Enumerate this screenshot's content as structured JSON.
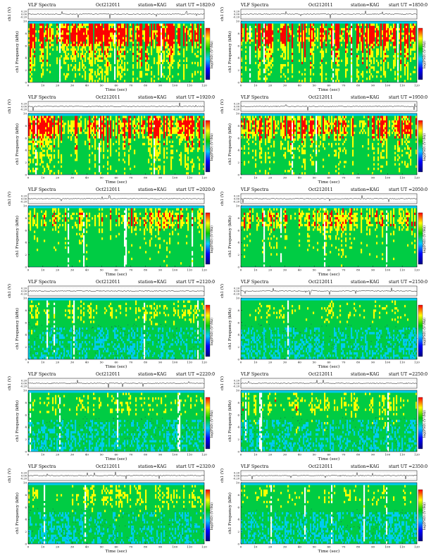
{
  "chart_data": [
    {
      "type": "heatmap",
      "title": "VLF Spectra",
      "date": "Oct212011",
      "station": "station=KAG",
      "start": "start  UT  =1820:0",
      "xlabel": "Time  (sec)",
      "xlim": [
        0,
        120
      ],
      "xticks": [
        0,
        10,
        20,
        30,
        40,
        50,
        60,
        70,
        80,
        90,
        100,
        110,
        120
      ],
      "ylabel_top": "ch1 (V)",
      "yticks_top": [
        "0.20",
        "0.00",
        "-0.20"
      ],
      "ylabel_main": "ch1 Frequency  (kHz)",
      "ylim": [
        0,
        10
      ],
      "yticks_main": [
        0,
        2,
        4,
        6,
        8,
        10
      ],
      "colorbar_label": "log(PSD) (V²/Hz)",
      "intensity": 0.82
    },
    {
      "type": "heatmap",
      "title": "VLF Spectra",
      "date": "Oct212011",
      "station": "station=KAG",
      "start": "start  UT  =1850:0",
      "xlabel": "Time  (sec)",
      "xlim": [
        0,
        120
      ],
      "xticks": [
        0,
        10,
        20,
        30,
        40,
        50,
        60,
        70,
        80,
        90,
        100,
        110,
        120
      ],
      "ylabel_top": "ch1 (V)",
      "yticks_top": [
        "0.20",
        "0.00",
        "-0.20"
      ],
      "ylabel_main": "ch1 Frequency  (kHz)",
      "ylim": [
        0,
        10
      ],
      "yticks_main": [
        0,
        2,
        4,
        6,
        8,
        10
      ],
      "colorbar_label": "log(PSD) (V²/Hz)",
      "intensity": 0.8
    },
    {
      "type": "heatmap",
      "title": "VLF Spectra",
      "date": "Oct212011",
      "station": "station=KAG",
      "start": "start  UT  =1920:0",
      "xlabel": "Time  (sec)",
      "xlim": [
        0,
        120
      ],
      "xticks": [
        0,
        10,
        20,
        30,
        40,
        50,
        60,
        70,
        80,
        90,
        100,
        110,
        120
      ],
      "ylabel_top": "ch1 (V)",
      "yticks_top": [
        "0.20",
        "0.00",
        "-0.20"
      ],
      "ylabel_main": "ch1 Frequency  (kHz)",
      "ylim": [
        0,
        10
      ],
      "yticks_main": [
        0,
        2,
        4,
        6,
        8,
        10
      ],
      "colorbar_label": "log(PSD) (V²/Hz)",
      "intensity": 0.72
    },
    {
      "type": "heatmap",
      "title": "VLF Spectra",
      "date": "Oct212011",
      "station": "station=KAG",
      "start": "start  UT  =1950:0",
      "xlabel": "Time  (sec)",
      "xlim": [
        0,
        120
      ],
      "xticks": [
        0,
        10,
        20,
        30,
        40,
        50,
        60,
        70,
        80,
        90,
        100,
        110,
        120
      ],
      "ylabel_top": "ch1 (V)",
      "yticks_top": [
        "0.20",
        "0.00",
        "-0.20"
      ],
      "ylabel_main": "ch1 Frequency  (kHz)",
      "ylim": [
        0,
        10
      ],
      "yticks_main": [
        0,
        2,
        4,
        6,
        8,
        10
      ],
      "colorbar_label": "log(PSD) (V²/Hz)",
      "intensity": 0.7
    },
    {
      "type": "heatmap",
      "title": "VLF Spectra",
      "date": "Oct212011",
      "station": "station=KAG",
      "start": "start  UT  =2020:0",
      "xlabel": "Time  (sec)",
      "xlim": [
        0,
        120
      ],
      "xticks": [
        0,
        10,
        20,
        30,
        40,
        50,
        60,
        70,
        80,
        90,
        100,
        110,
        120
      ],
      "ylabel_top": "ch1 (V)",
      "yticks_top": [
        "0.20",
        "0.00",
        "-0.20"
      ],
      "ylabel_main": "ch1 Frequency  (kHz)",
      "ylim": [
        0,
        10
      ],
      "yticks_main": [
        0,
        2,
        4,
        6,
        8,
        10
      ],
      "colorbar_label": "log(PSD) (V²/Hz)",
      "intensity": 0.5
    },
    {
      "type": "heatmap",
      "title": "VLF Spectra",
      "date": "Oct212011",
      "station": "station=KAG",
      "start": "start  UT  =2050:0",
      "xlabel": "Time  (sec)",
      "xlim": [
        0,
        120
      ],
      "xticks": [
        0,
        10,
        20,
        30,
        40,
        50,
        60,
        70,
        80,
        90,
        100,
        110,
        120
      ],
      "ylabel_top": "ch1 (V)",
      "yticks_top": [
        "0.20",
        "0.00",
        "-0.20"
      ],
      "ylabel_main": "ch1 Frequency  (kHz)",
      "ylim": [
        0,
        10
      ],
      "yticks_main": [
        0,
        2,
        4,
        6,
        8,
        10
      ],
      "colorbar_label": "log(PSD) (V²/Hz)",
      "intensity": 0.5
    },
    {
      "type": "heatmap",
      "title": "VLF Spectra",
      "date": "Oct212011",
      "station": "station=KAG",
      "start": "start  UT  =2120:0",
      "xlabel": "Time  (sec)",
      "xlim": [
        0,
        120
      ],
      "xticks": [
        0,
        10,
        20,
        30,
        40,
        50,
        60,
        70,
        80,
        90,
        100,
        110,
        120
      ],
      "ylabel_top": "ch1 (V)",
      "yticks_top": [
        "0.20",
        "0.00",
        "-0.20"
      ],
      "ylabel_main": "ch1 Frequency  (kHz)",
      "ylim": [
        0,
        10
      ],
      "yticks_main": [
        0,
        2,
        4,
        6,
        8,
        10
      ],
      "colorbar_label": "log(PSD) (V²/Hz)",
      "intensity": 0.35
    },
    {
      "type": "heatmap",
      "title": "VLF Spectra",
      "date": "Oct212011",
      "station": "station=KAG",
      "start": "start  UT  =2150:0",
      "xlabel": "Time  (sec)",
      "xlim": [
        0,
        120
      ],
      "xticks": [
        0,
        10,
        20,
        30,
        40,
        50,
        60,
        70,
        80,
        90,
        100,
        110,
        120
      ],
      "ylabel_top": "ch1 (V)",
      "yticks_top": [
        "0.20",
        "0.00",
        "-0.20"
      ],
      "ylabel_main": "ch1 Frequency  (kHz)",
      "ylim": [
        0,
        10
      ],
      "yticks_main": [
        0,
        2,
        4,
        6,
        8,
        10
      ],
      "colorbar_label": "log(PSD) (V²/Hz)",
      "intensity": 0.3
    },
    {
      "type": "heatmap",
      "title": "VLF Spectra",
      "date": "Oct212011",
      "station": "station=KAG",
      "start": "start  UT  =2220:0",
      "xlabel": "Time  (sec)",
      "xlim": [
        0,
        120
      ],
      "xticks": [
        0,
        10,
        20,
        30,
        40,
        50,
        60,
        70,
        80,
        90,
        100,
        110,
        120
      ],
      "ylabel_top": "ch1 (V)",
      "yticks_top": [
        "0.20",
        "0.00",
        "-0.20"
      ],
      "ylabel_main": "ch1 Frequency  (kHz)",
      "ylim": [
        0,
        10
      ],
      "yticks_main": [
        0,
        2,
        4,
        6,
        8,
        10
      ],
      "colorbar_label": "log(PSD) (V²/Hz)",
      "intensity": 0.32
    },
    {
      "type": "heatmap",
      "title": "VLF Spectra",
      "date": "Oct212011",
      "station": "station=KAG",
      "start": "start  UT  =2250:0",
      "xlabel": "Time  (sec)",
      "xlim": [
        0,
        120
      ],
      "xticks": [
        0,
        10,
        20,
        30,
        40,
        50,
        60,
        70,
        80,
        90,
        100,
        110,
        120
      ],
      "ylabel_top": "ch1 (V)",
      "yticks_top": [
        "0.20",
        "0.00",
        "-0.20"
      ],
      "ylabel_main": "ch1 Frequency  (kHz)",
      "ylim": [
        0,
        10
      ],
      "yticks_main": [
        0,
        2,
        4,
        6,
        8,
        10
      ],
      "colorbar_label": "log(PSD) (V²/Hz)",
      "intensity": 0.38
    },
    {
      "type": "heatmap",
      "title": "VLF Spectra",
      "date": "Oct212011",
      "station": "station=KAG",
      "start": "start  UT  =2320:0",
      "xlabel": "Time  (sec)",
      "xlim": [
        0,
        120
      ],
      "xticks": [
        0,
        10,
        20,
        30,
        40,
        50,
        60,
        70,
        80,
        90,
        100,
        110,
        120
      ],
      "ylabel_top": "ch1 (V)",
      "yticks_top": [
        "0.20",
        "0.00",
        "-0.20"
      ],
      "ylabel_main": "ch1 Frequency  (kHz)",
      "ylim": [
        0,
        10
      ],
      "yticks_main": [
        0,
        2,
        4,
        6,
        8,
        10
      ],
      "colorbar_label": "log(PSD) (V²/Hz)",
      "intensity": 0.36
    },
    {
      "type": "heatmap",
      "title": "VLF Spectra",
      "date": "Oct212011",
      "station": "station=KAG",
      "start": "start  UT  =2350:0",
      "xlabel": "Time  (sec)",
      "xlim": [
        0,
        120
      ],
      "xticks": [
        0,
        10,
        20,
        30,
        40,
        50,
        60,
        70,
        80,
        90,
        100,
        110,
        120
      ],
      "ylabel_top": "ch1 (V)",
      "yticks_top": [
        "0.20",
        "0.00",
        "-0.20"
      ],
      "ylabel_main": "ch1 Frequency  (kHz)",
      "ylim": [
        0,
        10
      ],
      "yticks_main": [
        0,
        2,
        4,
        6,
        8,
        10
      ],
      "colorbar_label": "log(PSD) (V²/Hz)",
      "intensity": 0.3
    }
  ],
  "colors": {
    "background": "#00ccee",
    "low": "#00cc44",
    "mid": "#ffff00",
    "high": "#ff0000",
    "gap": "#ffffff",
    "colorbar_stops": [
      "#ff0000",
      "#ffff00",
      "#00cc00",
      "#00ccff",
      "#0000ff",
      "#000080"
    ]
  }
}
